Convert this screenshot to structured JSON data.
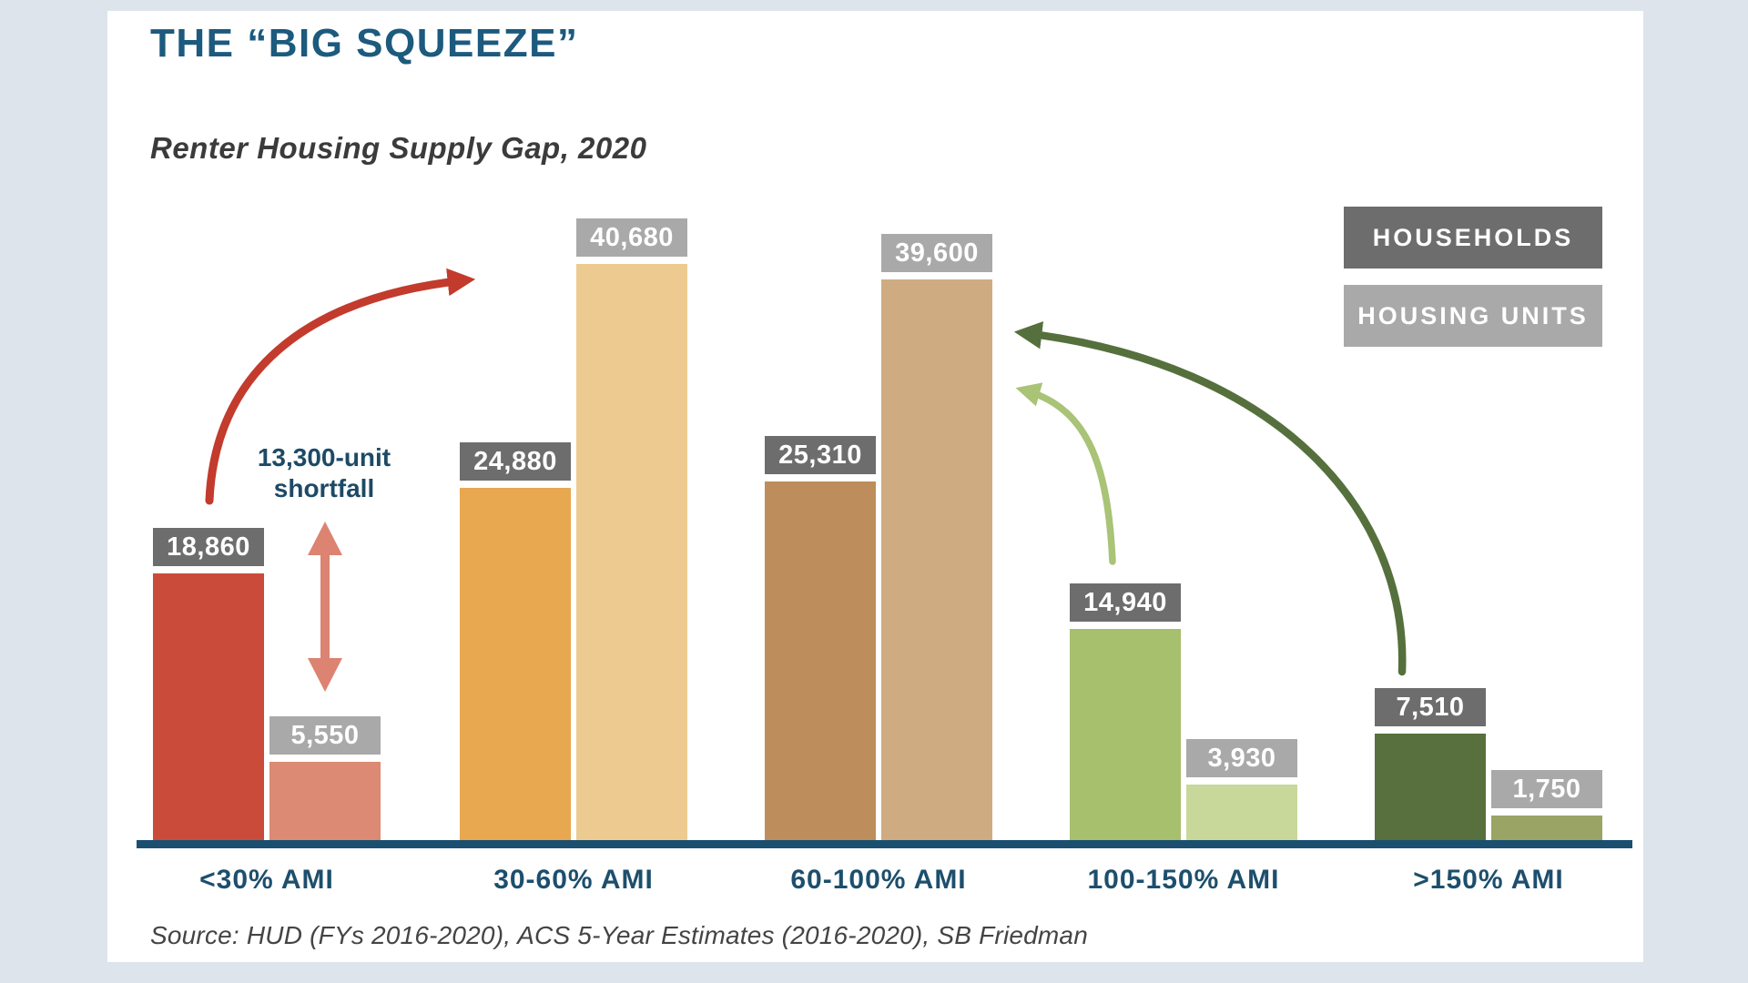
{
  "header": {
    "title": "THE “BIG SQUEEZE”",
    "subtitle": "Renter Housing Supply Gap, 2020"
  },
  "legend": {
    "households": "HOUSEHOLDS",
    "housing_units": "HOUSING UNITS"
  },
  "annotations": {
    "shortfall_line1": "13,300-unit",
    "shortfall_line2": "shortfall"
  },
  "footer": {
    "source": "Source: HUD (FYs 2016-2020), ACS 5-Year Estimates (2016-2020), SB Friedman"
  },
  "colors": {
    "background": "#dde4ec",
    "panel": "#ffffff",
    "title_blue": "#1c5a7e",
    "subtitle_gray": "#3b3b3b",
    "category_blue": "#1d4f6d",
    "axis_blue": "#1b4f70",
    "annotation_blue": "#1d4a66",
    "source_gray": "#444444",
    "households_label_bg": "#6d6d6d",
    "housing_units_label_bg": "#a9a9a9",
    "label_text": "#ffffff",
    "arrow_red": "#c23b2d",
    "arrow_salmon": "#dd8372",
    "arrow_dark_green": "#55703c",
    "arrow_light_green": "#a9c377"
  },
  "chart_data": {
    "type": "bar",
    "title": "Renter Housing Supply Gap, 2020",
    "categories": [
      "<30% AMI",
      "30-60% AMI",
      "60-100% AMI",
      "100-150% AMI",
      ">150% AMI"
    ],
    "series": [
      {
        "name": "Households",
        "values": [
          18860,
          24880,
          25310,
          14940,
          7510
        ],
        "value_labels": [
          "18,860",
          "24,880",
          "25,310",
          "14,940",
          "7,510"
        ],
        "colors": [
          "#cb4b3b",
          "#e7a84f",
          "#bd8e5b",
          "#a6c06d",
          "#57703d"
        ]
      },
      {
        "name": "Housing Units",
        "values": [
          5550,
          40680,
          39600,
          3930,
          1750
        ],
        "value_labels": [
          "5,550",
          "40,680",
          "39,600",
          "3,930",
          "1,750"
        ],
        "colors": [
          "#dc8a73",
          "#edcb90",
          "#cfab82",
          "#c8d89a",
          "#9aa464"
        ]
      }
    ],
    "annotations": [
      "13,300-unit shortfall"
    ],
    "legend_position": "top-right",
    "y_axis_visible": false,
    "grid": false,
    "ylim": [
      0,
      42000
    ]
  }
}
